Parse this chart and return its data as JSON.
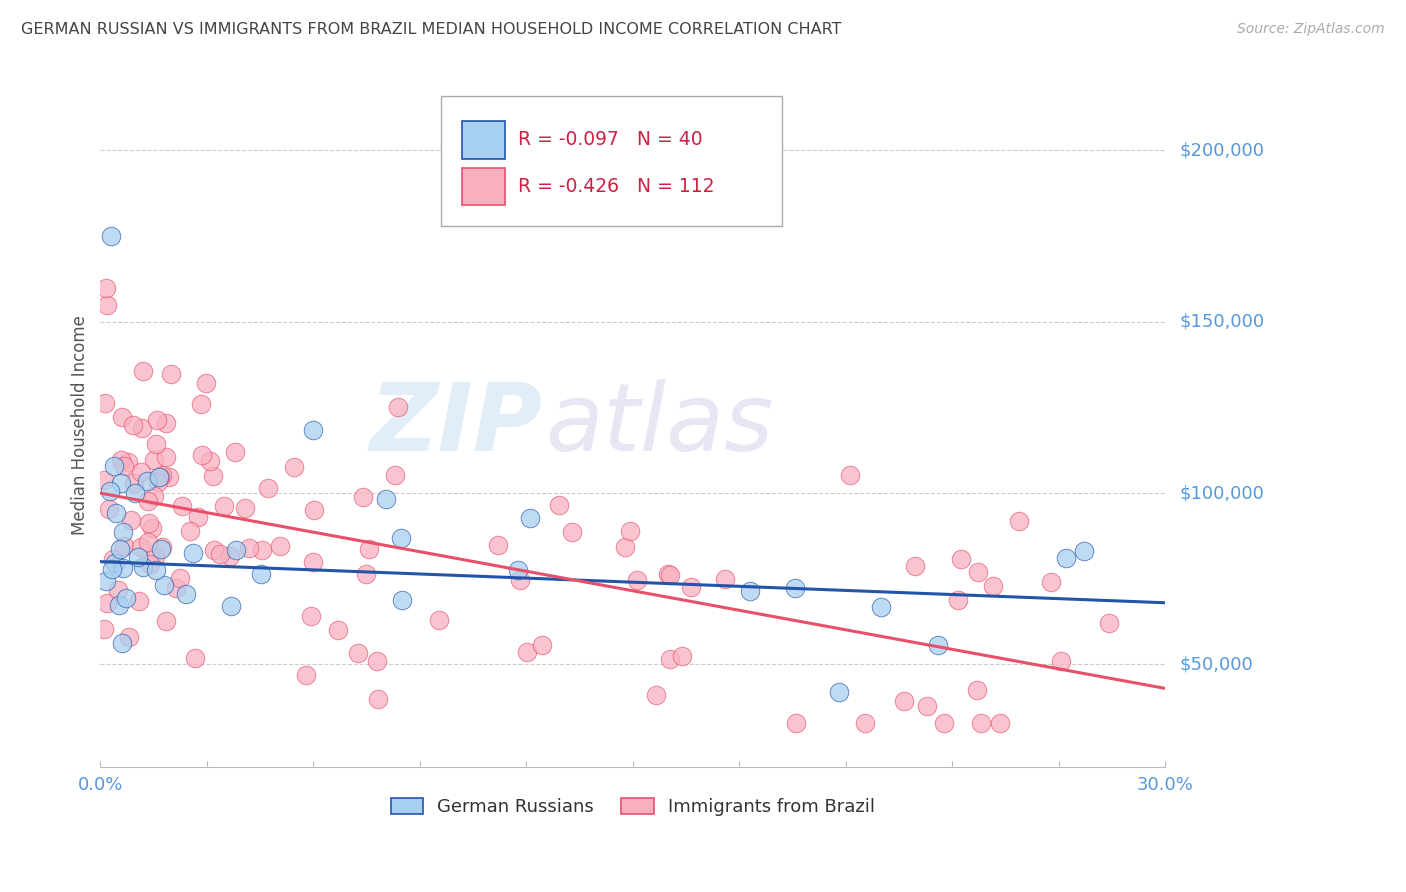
{
  "title": "GERMAN RUSSIAN VS IMMIGRANTS FROM BRAZIL MEDIAN HOUSEHOLD INCOME CORRELATION CHART",
  "source": "Source: ZipAtlas.com",
  "ylabel": "Median Household Income",
  "xlim": [
    0.0,
    0.3
  ],
  "ylim": [
    20000,
    220000
  ],
  "ytick_vals": [
    50000,
    100000,
    150000,
    200000
  ],
  "ytick_labels": [
    "$50,000",
    "$100,000",
    "$150,000",
    "$200,000"
  ],
  "series1_color": "#a8d0f0",
  "series2_color": "#f8b0c0",
  "line1_color": "#2255aa",
  "line2_color": "#e8506a",
  "watermark_zip": "ZIP",
  "watermark_atlas": "atlas",
  "background_color": "#ffffff",
  "grid_color": "#cccccc",
  "title_color": "#444444",
  "axis_label_color": "#555555",
  "ytick_label_color": "#5599dd",
  "xtick_label_color": "#5599dd",
  "series1_r": -0.097,
  "series1_n": 40,
  "series2_r": -0.426,
  "series2_n": 112,
  "line1_y0": 80000,
  "line1_y1": 68000,
  "line2_y0": 100000,
  "line2_y1": 43000
}
